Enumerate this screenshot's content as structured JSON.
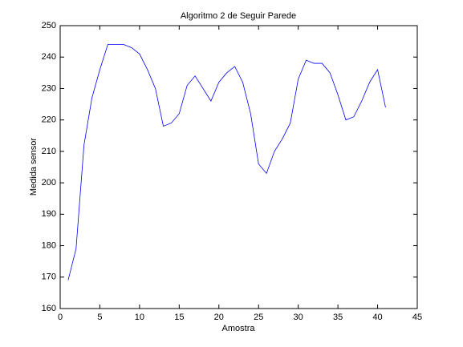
{
  "chart_data": {
    "type": "line",
    "title": "Algoritmo 2 de Seguir Parede",
    "x_label": "Amostra",
    "y_label": "Medida sensor",
    "x": [
      1,
      2,
      3,
      4,
      5,
      6,
      7,
      8,
      9,
      10,
      11,
      12,
      13,
      14,
      15,
      16,
      17,
      18,
      19,
      20,
      21,
      22,
      23,
      24,
      25,
      26,
      27,
      28,
      29,
      30,
      31,
      32,
      33,
      34,
      35,
      36,
      37,
      38,
      39,
      40,
      41
    ],
    "series": [
      {
        "color": "#0000ff",
        "values": [
          169,
          179,
          212,
          227,
          236,
          244,
          244,
          244,
          243,
          241,
          236,
          230,
          218,
          219,
          222,
          231,
          234,
          230,
          226,
          232,
          235,
          237,
          232,
          222,
          206,
          203,
          210,
          214,
          219,
          233,
          239,
          238,
          238,
          235,
          228,
          220,
          221,
          226,
          232,
          236,
          224
        ]
      }
    ],
    "xlim": [
      0,
      45
    ],
    "xticks": [
      0,
      5,
      10,
      15,
      20,
      25,
      30,
      35,
      40,
      45
    ],
    "ylim": [
      160,
      250
    ],
    "yticks": [
      160,
      170,
      180,
      190,
      200,
      210,
      220,
      230,
      240,
      250
    ],
    "grid": false
  }
}
